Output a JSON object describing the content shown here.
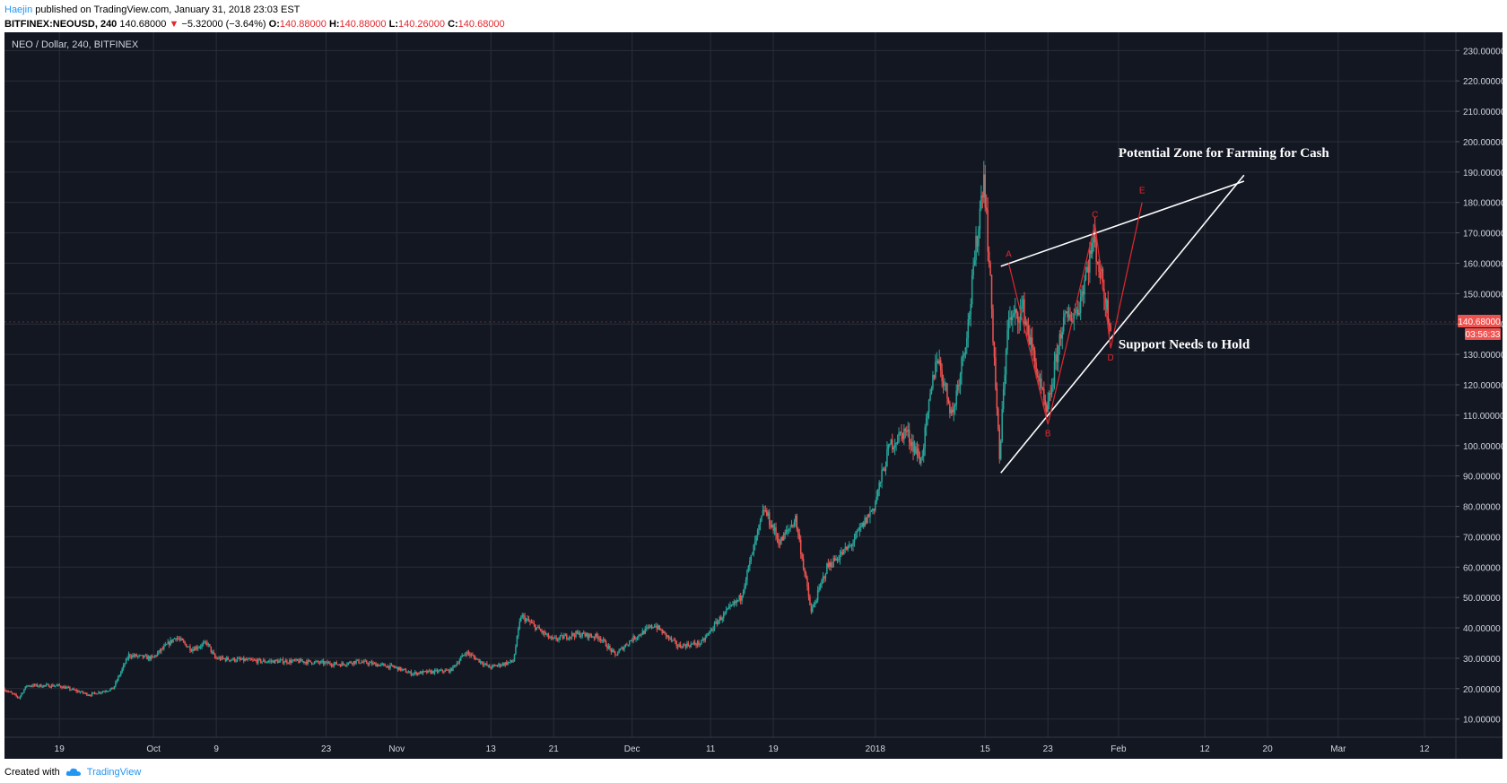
{
  "header": {
    "author": "Haejin",
    "published_text": " published on TradingView.com, January 31, 2018 23:03 EST",
    "symbol_line": "BITFINEX:NEOUSD, 240",
    "last_price": "140.68000",
    "change_text": "−5.32000 (−3.64%)",
    "o_label": "O:",
    "o_value": "140.88000",
    "h_label": "H:",
    "h_value": "140.88000",
    "l_label": "L:",
    "l_value": "140.26000",
    "c_label": "C:",
    "c_value": "140.68000"
  },
  "footer": {
    "created_with": "Created with",
    "tv_label": "TradingView"
  },
  "chart_data": {
    "type": "candlestick",
    "pair_label": "NEO / Dollar, 240, BITFINEX",
    "ylim": [
      4,
      236
    ],
    "y_ticks": [
      10,
      20,
      30,
      40,
      50,
      60,
      70,
      80,
      90,
      100,
      110,
      120,
      130,
      140,
      150,
      160,
      170,
      180,
      190,
      200,
      210,
      220,
      230
    ],
    "y_tick_labels": [
      "10.00000",
      "20.00000",
      "30.00000",
      "40.00000",
      "50.00000",
      "60.00000",
      "70.00000",
      "80.00000",
      "90.00000",
      "100.00000",
      "110.00000",
      "120.00000",
      "130.00000",
      "140.00000",
      "150.00000",
      "160.00000",
      "170.00000",
      "180.00000",
      "190.00000",
      "200.00000",
      "210.00000",
      "220.00000",
      "230.00000"
    ],
    "x_range": [
      "2017-09-12",
      "2018-03-16"
    ],
    "x_ticks": [
      {
        "date": "2017-09-19",
        "label": "19"
      },
      {
        "date": "2017-10-01",
        "label": "Oct"
      },
      {
        "date": "2017-10-09",
        "label": "9"
      },
      {
        "date": "2017-10-23",
        "label": "23"
      },
      {
        "date": "2017-11-01",
        "label": "Nov"
      },
      {
        "date": "2017-11-13",
        "label": "13"
      },
      {
        "date": "2017-11-21",
        "label": "21"
      },
      {
        "date": "2017-12-01",
        "label": "Dec"
      },
      {
        "date": "2017-12-11",
        "label": "11"
      },
      {
        "date": "2017-12-19",
        "label": "19"
      },
      {
        "date": "2018-01-01",
        "label": "2018"
      },
      {
        "date": "2018-01-15",
        "label": "15"
      },
      {
        "date": "2018-01-23",
        "label": "23"
      },
      {
        "date": "2018-02-01",
        "label": "Feb"
      },
      {
        "date": "2018-02-12",
        "label": "12"
      },
      {
        "date": "2018-02-20",
        "label": "20"
      },
      {
        "date": "2018-03-01",
        "label": "Mar"
      },
      {
        "date": "2018-03-12",
        "label": "12"
      }
    ],
    "price_path": [
      [
        "2017-09-12",
        20
      ],
      [
        "2017-09-14",
        17
      ],
      [
        "2017-09-15",
        21
      ],
      [
        "2017-09-19",
        21
      ],
      [
        "2017-09-23",
        18
      ],
      [
        "2017-09-26",
        20
      ],
      [
        "2017-09-28",
        31
      ],
      [
        "2017-10-01",
        30
      ],
      [
        "2017-10-04",
        37
      ],
      [
        "2017-10-06",
        33
      ],
      [
        "2017-10-08",
        35
      ],
      [
        "2017-10-09",
        30
      ],
      [
        "2017-10-15",
        29
      ],
      [
        "2017-10-20",
        29
      ],
      [
        "2017-10-25",
        28
      ],
      [
        "2017-10-27",
        29
      ],
      [
        "2017-11-01",
        27
      ],
      [
        "2017-11-03",
        25
      ],
      [
        "2017-11-08",
        26
      ],
      [
        "2017-11-10",
        32
      ],
      [
        "2017-11-13",
        27
      ],
      [
        "2017-11-16",
        29
      ],
      [
        "2017-11-17",
        44
      ],
      [
        "2017-11-21",
        36
      ],
      [
        "2017-11-24",
        38
      ],
      [
        "2017-11-27",
        37
      ],
      [
        "2017-11-29",
        31
      ],
      [
        "2017-12-01",
        36
      ],
      [
        "2017-12-04",
        41
      ],
      [
        "2017-12-07",
        34
      ],
      [
        "2017-12-10",
        35
      ],
      [
        "2017-12-12",
        42
      ],
      [
        "2017-12-15",
        50
      ],
      [
        "2017-12-18",
        79
      ],
      [
        "2017-12-20",
        68
      ],
      [
        "2017-12-22",
        76
      ],
      [
        "2017-12-24",
        45
      ],
      [
        "2017-12-26",
        60
      ],
      [
        "2017-12-29",
        67
      ],
      [
        "2018-01-01",
        80
      ],
      [
        "2018-01-03",
        100
      ],
      [
        "2018-01-05",
        105
      ],
      [
        "2018-01-07",
        95
      ],
      [
        "2018-01-09",
        130
      ],
      [
        "2018-01-11",
        110
      ],
      [
        "2018-01-13",
        140
      ],
      [
        "2018-01-15",
        190
      ],
      [
        "2018-01-16",
        145
      ],
      [
        "2018-01-17",
        95
      ],
      [
        "2018-01-18",
        140
      ],
      [
        "2018-01-20",
        145
      ],
      [
        "2018-01-23",
        110
      ],
      [
        "2018-01-25",
        140
      ],
      [
        "2018-01-27",
        145
      ],
      [
        "2018-01-29",
        168
      ],
      [
        "2018-01-31",
        141
      ]
    ],
    "trend_lines": [
      {
        "from": [
          "2018-01-17",
          159
        ],
        "to": [
          "2018-02-17",
          187
        ],
        "color": "#ffffff"
      },
      {
        "from": [
          "2018-01-17",
          91
        ],
        "to": [
          "2018-02-17",
          189
        ],
        "color": "#ffffff"
      }
    ],
    "wave_path": [
      [
        "2018-01-18",
        160
      ],
      [
        "2018-01-23",
        107
      ],
      [
        "2018-01-29",
        173
      ],
      [
        "2018-01-31",
        132
      ],
      [
        "2018-02-04",
        180
      ]
    ],
    "wave_labels": [
      {
        "text": "A",
        "date": "2018-01-18",
        "price": 162
      },
      {
        "text": "B",
        "date": "2018-01-23",
        "price": 103
      },
      {
        "text": "C",
        "date": "2018-01-29",
        "price": 175
      },
      {
        "text": "D",
        "date": "2018-01-31",
        "price": 128
      },
      {
        "text": "E",
        "date": "2018-02-04",
        "price": 183
      }
    ],
    "annotations": [
      {
        "text": "Potential Zone for Farming for Cash",
        "date": "2018-02-01",
        "price": 195
      },
      {
        "text": "Support Needs to Hold",
        "date": "2018-02-01",
        "price": 132
      }
    ],
    "last_price_label": "140.68000",
    "last_price": 140.68,
    "countdown_label": "03:56:33",
    "colors": {
      "background": "#131722",
      "grid": "#2a2e39",
      "up": "#26a69a",
      "down": "#ef5350",
      "axis_text": "#d1d4dc",
      "wave": "#e0282e",
      "price_tag": "#ef5350"
    }
  }
}
